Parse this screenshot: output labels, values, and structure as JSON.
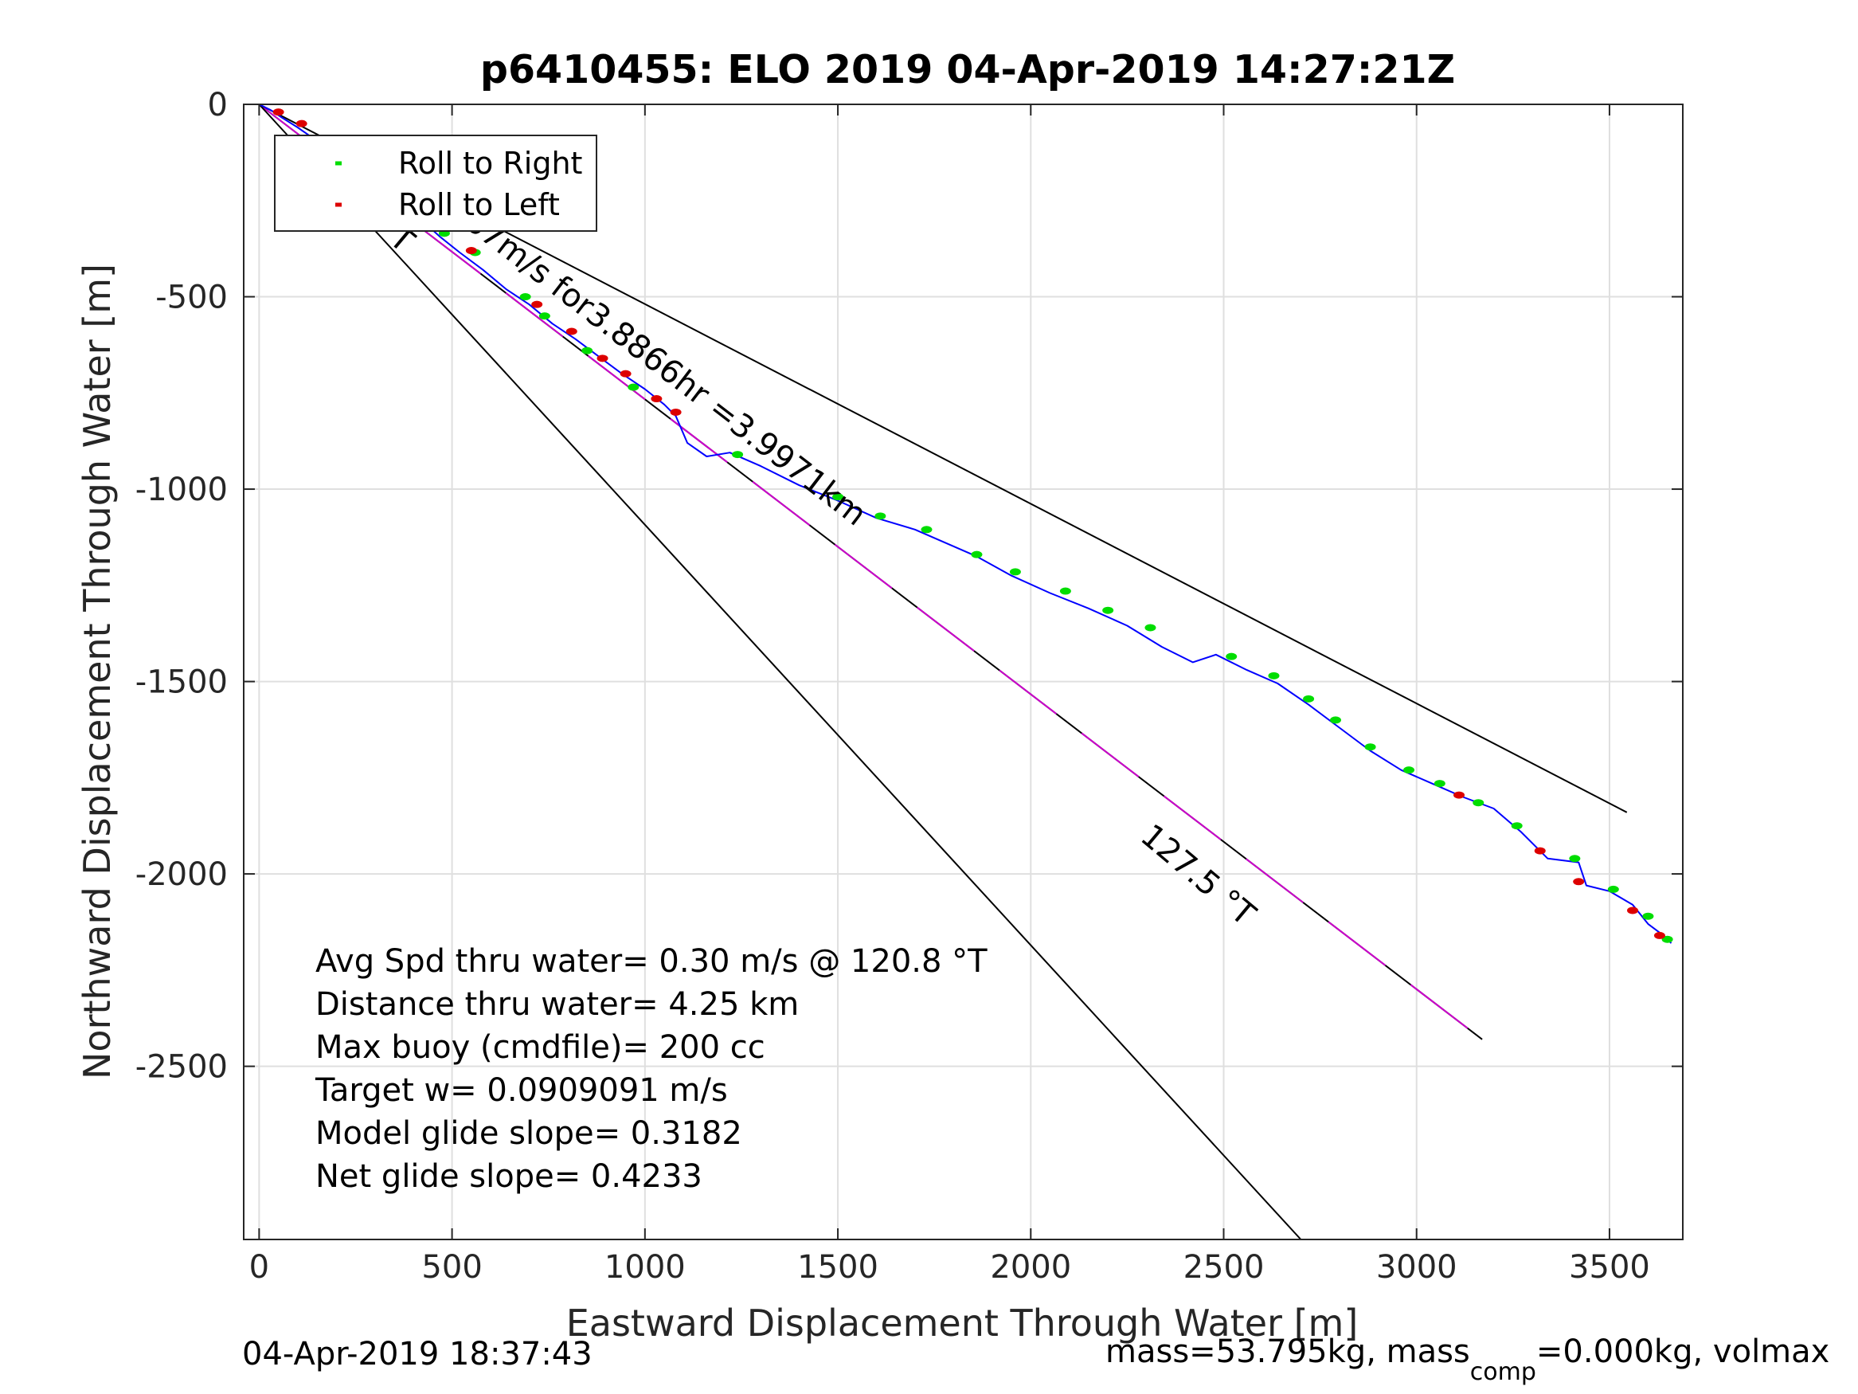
{
  "chart_data": {
    "type": "line",
    "title": "p6410455: ELO 2019 04-Apr-2019 14:27:21Z",
    "xlabel": "Eastward Displacement Through Water [m]",
    "ylabel": "Northward Displacement Through Water [m]",
    "xlim": [
      -40,
      3690
    ],
    "ylim": [
      -2950,
      0
    ],
    "xticks": [
      0,
      500,
      1000,
      1500,
      2000,
      2500,
      3000,
      3500
    ],
    "yticks": [
      0,
      -500,
      -1000,
      -1500,
      -2000,
      -2500
    ],
    "grid": true,
    "legend": {
      "position": "top-left",
      "entries": [
        "Roll to Right",
        "Roll to Left"
      ]
    },
    "colors": {
      "track": "#0000ff",
      "roll_right": "#00dd00",
      "roll_left": "#dd0000",
      "heading_line": "#cc00cc",
      "reference_line": "#000000"
    },
    "series": [
      {
        "name": "",
        "role": "track",
        "x": [
          0,
          30,
          60,
          100,
          150,
          200,
          260,
          320,
          370,
          420,
          470,
          520,
          580,
          640,
          700,
          760,
          820,
          880,
          940,
          1000,
          1050,
          1080,
          1110,
          1160,
          1220,
          1300,
          1400,
          1500,
          1600,
          1700,
          1780,
          1860,
          1950,
          2050,
          2150,
          2250,
          2340,
          2420,
          2480,
          2560,
          2640,
          2720,
          2800,
          2880,
          2960,
          3040,
          3120,
          3200,
          3270,
          3340,
          3420,
          3440,
          3500,
          3560,
          3600,
          3640,
          3660
        ],
        "y": [
          0,
          -15,
          -35,
          -60,
          -95,
          -140,
          -175,
          -215,
          -260,
          -300,
          -345,
          -385,
          -430,
          -480,
          -520,
          -570,
          -610,
          -655,
          -700,
          -740,
          -780,
          -810,
          -880,
          -915,
          -905,
          -940,
          -990,
          -1030,
          -1075,
          -1105,
          -1140,
          -1175,
          -1225,
          -1270,
          -1310,
          -1355,
          -1410,
          -1450,
          -1430,
          -1470,
          -1505,
          -1560,
          -1620,
          -1680,
          -1730,
          -1765,
          -1800,
          -1830,
          -1890,
          -1960,
          -1970,
          -2030,
          -2045,
          -2080,
          -2130,
          -2160,
          -2180
        ]
      },
      {
        "name": "Roll to Right",
        "role": "points",
        "x": [
          210,
          260,
          350,
          480,
          560,
          690,
          740,
          850,
          970,
          1240,
          1500,
          1610,
          1730,
          1860,
          1960,
          2090,
          2200,
          2310,
          2520,
          2630,
          2720,
          2790,
          2880,
          2980,
          3060,
          3160,
          3260,
          3410,
          3510,
          3600,
          3650
        ],
        "y": [
          -150,
          -165,
          -230,
          -335,
          -385,
          -500,
          -550,
          -640,
          -735,
          -910,
          -1020,
          -1070,
          -1105,
          -1170,
          -1215,
          -1265,
          -1315,
          -1360,
          -1435,
          -1485,
          -1545,
          -1600,
          -1670,
          -1730,
          -1765,
          -1815,
          -1875,
          -1960,
          -2040,
          -2110,
          -2170
        ]
      },
      {
        "name": "Roll to Left",
        "role": "points",
        "x": [
          50,
          110,
          320,
          460,
          550,
          720,
          810,
          890,
          950,
          1030,
          1080,
          3110,
          3320,
          3420,
          3560,
          3630
        ],
        "y": [
          -20,
          -50,
          -195,
          -295,
          -380,
          -520,
          -590,
          -660,
          -700,
          -765,
          -800,
          -1795,
          -1940,
          -2020,
          -2095,
          -2160
        ]
      },
      {
        "name": "",
        "role": "heading-127.5",
        "x": [
          0,
          3170
        ],
        "y": [
          0,
          -2430
        ]
      },
      {
        "name": "",
        "role": "upper-bound",
        "x": [
          0,
          3545
        ],
        "y": [
          0,
          -1840
        ]
      },
      {
        "name": "",
        "role": "lower-bound",
        "x": [
          0,
          2700
        ],
        "y": [
          0,
          -2950
        ]
      }
    ],
    "annotations": [
      {
        "text": "127.5 °T",
        "x": 100,
        "y": -160,
        "angle": 40
      },
      {
        "text": "0.28567m/s for3.8866hr =3.9971km",
        "x": 340,
        "y": -170,
        "angle": 37.5
      },
      {
        "text": "127.5 °T",
        "x": 2280,
        "y": -1910,
        "angle": 40
      }
    ],
    "stats": [
      "Avg Spd thru water=  0.30 m/s @ 120.8 °T",
      "Distance thru water=  4.25 km",
      "Max buoy (cmdfile)= 200 cc",
      "Target w= 0.0909091 m/s",
      "Model glide slope= 0.3182",
      "Net glide slope= 0.4233"
    ]
  },
  "footer": {
    "timestamp": "04-Apr-2019 18:37:43",
    "mass_prefix": "mass=53.795kg, mass",
    "mass_sub": "comp",
    "mass_suffix": "=0.000kg, volmax"
  }
}
